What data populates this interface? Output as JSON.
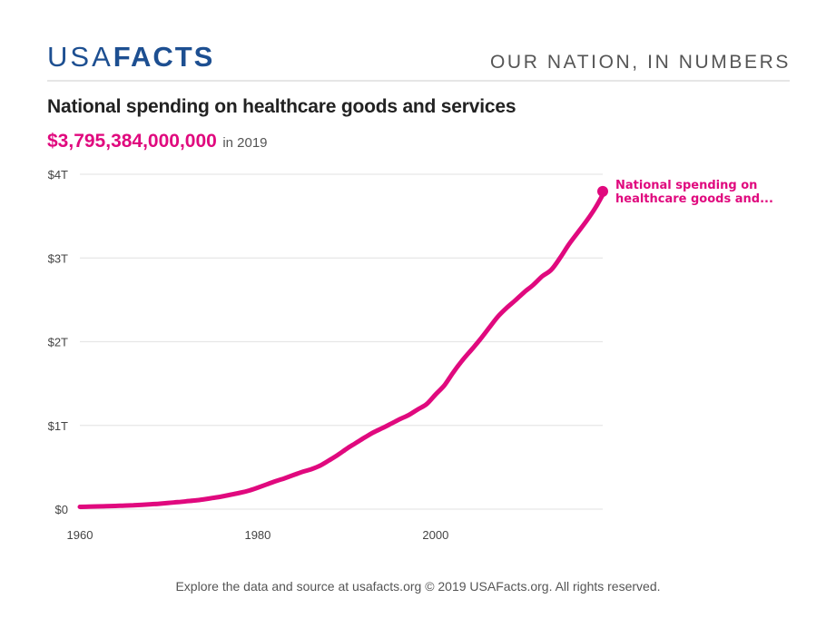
{
  "header": {
    "logo_light": "USA",
    "logo_bold": "FACTS",
    "tagline": "OUR NATION, IN NUMBERS"
  },
  "title": "National spending on healthcare goods and services",
  "headline": {
    "value": "$3,795,384,000,000",
    "suffix": "in 2019"
  },
  "colors": {
    "brand": "#1d4f91",
    "accent": "#e0097e",
    "grid": "#e6e6e6",
    "text": "#222222"
  },
  "footer": "Explore the data and source at usafacts.org © 2019 USAFacts.org. All rights reserved.",
  "chart_data": {
    "type": "line",
    "title": "National spending on healthcare goods and services",
    "xlabel": "",
    "ylabel": "",
    "xlim": [
      1960,
      2019
    ],
    "ylim": [
      0,
      4000000000000
    ],
    "grid": true,
    "x_ticks": [
      1960,
      1980,
      2000
    ],
    "x_tick_labels": [
      "1960",
      "1980",
      "2000"
    ],
    "y_ticks": [
      0,
      1000000000000,
      2000000000000,
      3000000000000,
      4000000000000
    ],
    "y_tick_labels": [
      "$0",
      "$1T",
      "$2T",
      "$3T",
      "$4T"
    ],
    "series": [
      {
        "name": "National spending on healthcare goods and...",
        "color": "#e0097e",
        "x": [
          1960,
          1961,
          1962,
          1963,
          1964,
          1965,
          1966,
          1967,
          1968,
          1969,
          1970,
          1971,
          1972,
          1973,
          1974,
          1975,
          1976,
          1977,
          1978,
          1979,
          1980,
          1981,
          1982,
          1983,
          1984,
          1985,
          1986,
          1987,
          1988,
          1989,
          1990,
          1991,
          1992,
          1993,
          1994,
          1995,
          1996,
          1997,
          1998,
          1999,
          2000,
          2001,
          2002,
          2003,
          2004,
          2005,
          2006,
          2007,
          2008,
          2009,
          2010,
          2011,
          2012,
          2013,
          2014,
          2015,
          2016,
          2017,
          2018,
          2019
        ],
        "values": [
          27000000000,
          29000000000,
          32000000000,
          35000000000,
          38000000000,
          42000000000,
          46000000000,
          52000000000,
          58000000000,
          65000000000,
          75000000000,
          83000000000,
          94000000000,
          104000000000,
          118000000000,
          134000000000,
          152000000000,
          173000000000,
          195000000000,
          221000000000,
          256000000000,
          295000000000,
          334000000000,
          368000000000,
          406000000000,
          444000000000,
          476000000000,
          519000000000,
          581000000000,
          647000000000,
          721000000000,
          788000000000,
          854000000000,
          916000000000,
          967000000000,
          1021000000000,
          1075000000000,
          1125000000000,
          1191000000000,
          1255000000000,
          1370000000000,
          1480000000000,
          1635000000000,
          1776000000000,
          1899000000000,
          2025000000000,
          2163000000000,
          2298000000000,
          2404000000000,
          2497000000000,
          2594000000000,
          2680000000000,
          2782000000000,
          2857000000000,
          3001000000000,
          3163000000000,
          3305000000000,
          3446000000000,
          3604000000000,
          3795384000000
        ],
        "end_label_lines": [
          "National spending on",
          "healthcare goods and..."
        ]
      }
    ]
  }
}
